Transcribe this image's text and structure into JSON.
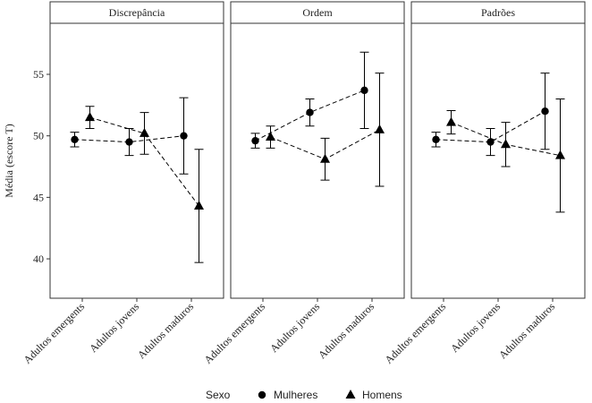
{
  "chart_data": [
    {
      "type": "line",
      "title": "Discrepância",
      "ylabel": "Média (escore T)",
      "legend_title": "Sexo",
      "categories": [
        "Adultos emergents",
        "Adultos jovens",
        "Adultos maduros"
      ],
      "ylim": [
        36.8,
        59.15
      ],
      "yticks": [
        40,
        45,
        50,
        55
      ],
      "series": [
        {
          "name": "Mulheres",
          "marker": "circle",
          "color": "#000000",
          "values": [
            49.7,
            49.5,
            50.0
          ],
          "errors": [
            0.6,
            1.1,
            3.1
          ]
        },
        {
          "name": "Homens",
          "marker": "triangle",
          "color": "#000000",
          "values": [
            51.5,
            50.2,
            44.3
          ],
          "errors": [
            0.9,
            1.7,
            4.6
          ]
        }
      ]
    },
    {
      "type": "line",
      "title": "Ordem",
      "categories": [
        "Adultos emergents",
        "Adultos jovens",
        "Adultos maduros"
      ],
      "ylim": [
        36.8,
        59.15
      ],
      "series": [
        {
          "marker": "circle",
          "color": "#000000",
          "values": [
            49.6,
            51.9,
            53.7
          ],
          "errors": [
            0.6,
            1.1,
            3.1
          ]
        },
        {
          "marker": "triangle",
          "color": "#000000",
          "values": [
            49.9,
            48.1,
            50.5
          ],
          "errors": [
            0.9,
            1.7,
            4.6
          ]
        }
      ]
    },
    {
      "type": "line",
      "title": "Padrões",
      "categories": [
        "Adultos emergents",
        "Adultos jovens",
        "Adultos maduros"
      ],
      "ylim": [
        36.8,
        59.15
      ],
      "series": [
        {
          "marker": "circle",
          "color": "#000000",
          "values": [
            49.7,
            49.5,
            52.0
          ],
          "errors": [
            0.6,
            1.1,
            3.1
          ]
        },
        {
          "marker": "triangle",
          "color": "#000000",
          "values": [
            51.1,
            49.3,
            48.4
          ],
          "errors": [
            0.95,
            1.8,
            4.6
          ]
        }
      ]
    }
  ]
}
